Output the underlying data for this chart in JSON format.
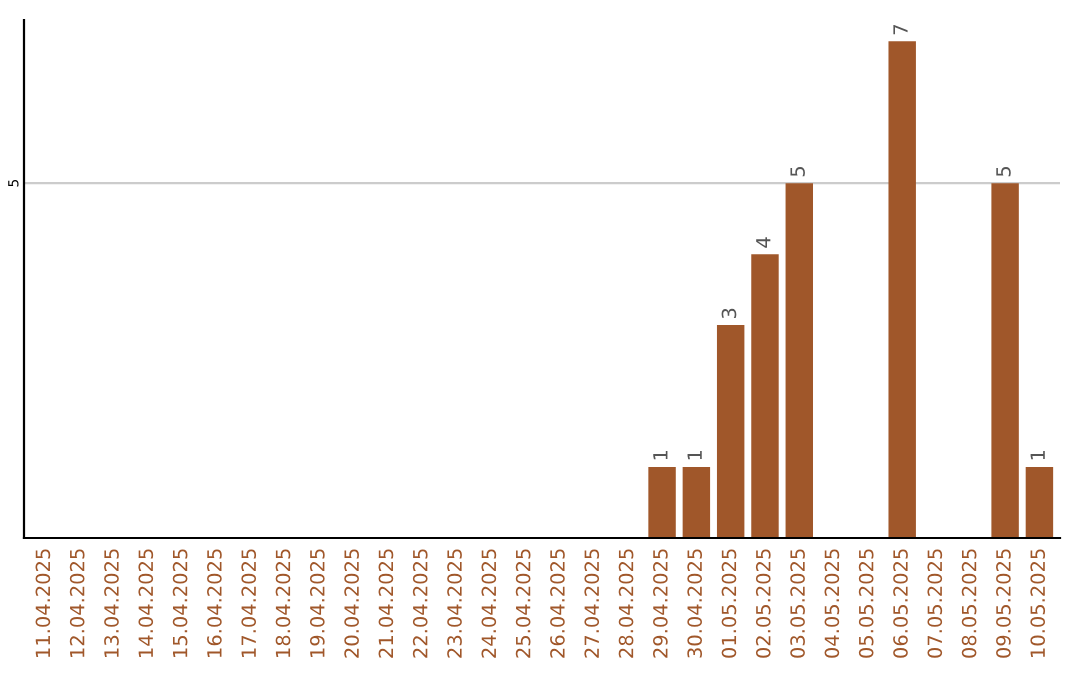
{
  "chart_data": {
    "type": "bar",
    "categories": [
      "11.04.2025",
      "12.04.2025",
      "13.04.2025",
      "14.04.2025",
      "15.04.2025",
      "16.04.2025",
      "17.04.2025",
      "18.04.2025",
      "19.04.2025",
      "20.04.2025",
      "21.04.2025",
      "22.04.2025",
      "23.04.2025",
      "24.04.2025",
      "25.04.2025",
      "26.04.2025",
      "27.04.2025",
      "28.04.2025",
      "29.04.2025",
      "30.04.2025",
      "01.05.2025",
      "02.05.2025",
      "03.05.2025",
      "04.05.2025",
      "05.05.2025",
      "06.05.2025",
      "07.05.2025",
      "08.05.2025",
      "09.05.2025",
      "10.05.2025"
    ],
    "values": [
      null,
      null,
      null,
      null,
      null,
      null,
      null,
      null,
      null,
      null,
      null,
      null,
      null,
      null,
      null,
      null,
      null,
      null,
      1,
      1,
      3,
      4,
      5,
      null,
      null,
      7,
      null,
      null,
      5,
      1
    ],
    "color": "#a0572a",
    "ylim": [
      0,
      7.3
    ],
    "yticks": [
      5
    ],
    "grid": "y",
    "data_labels": true
  }
}
